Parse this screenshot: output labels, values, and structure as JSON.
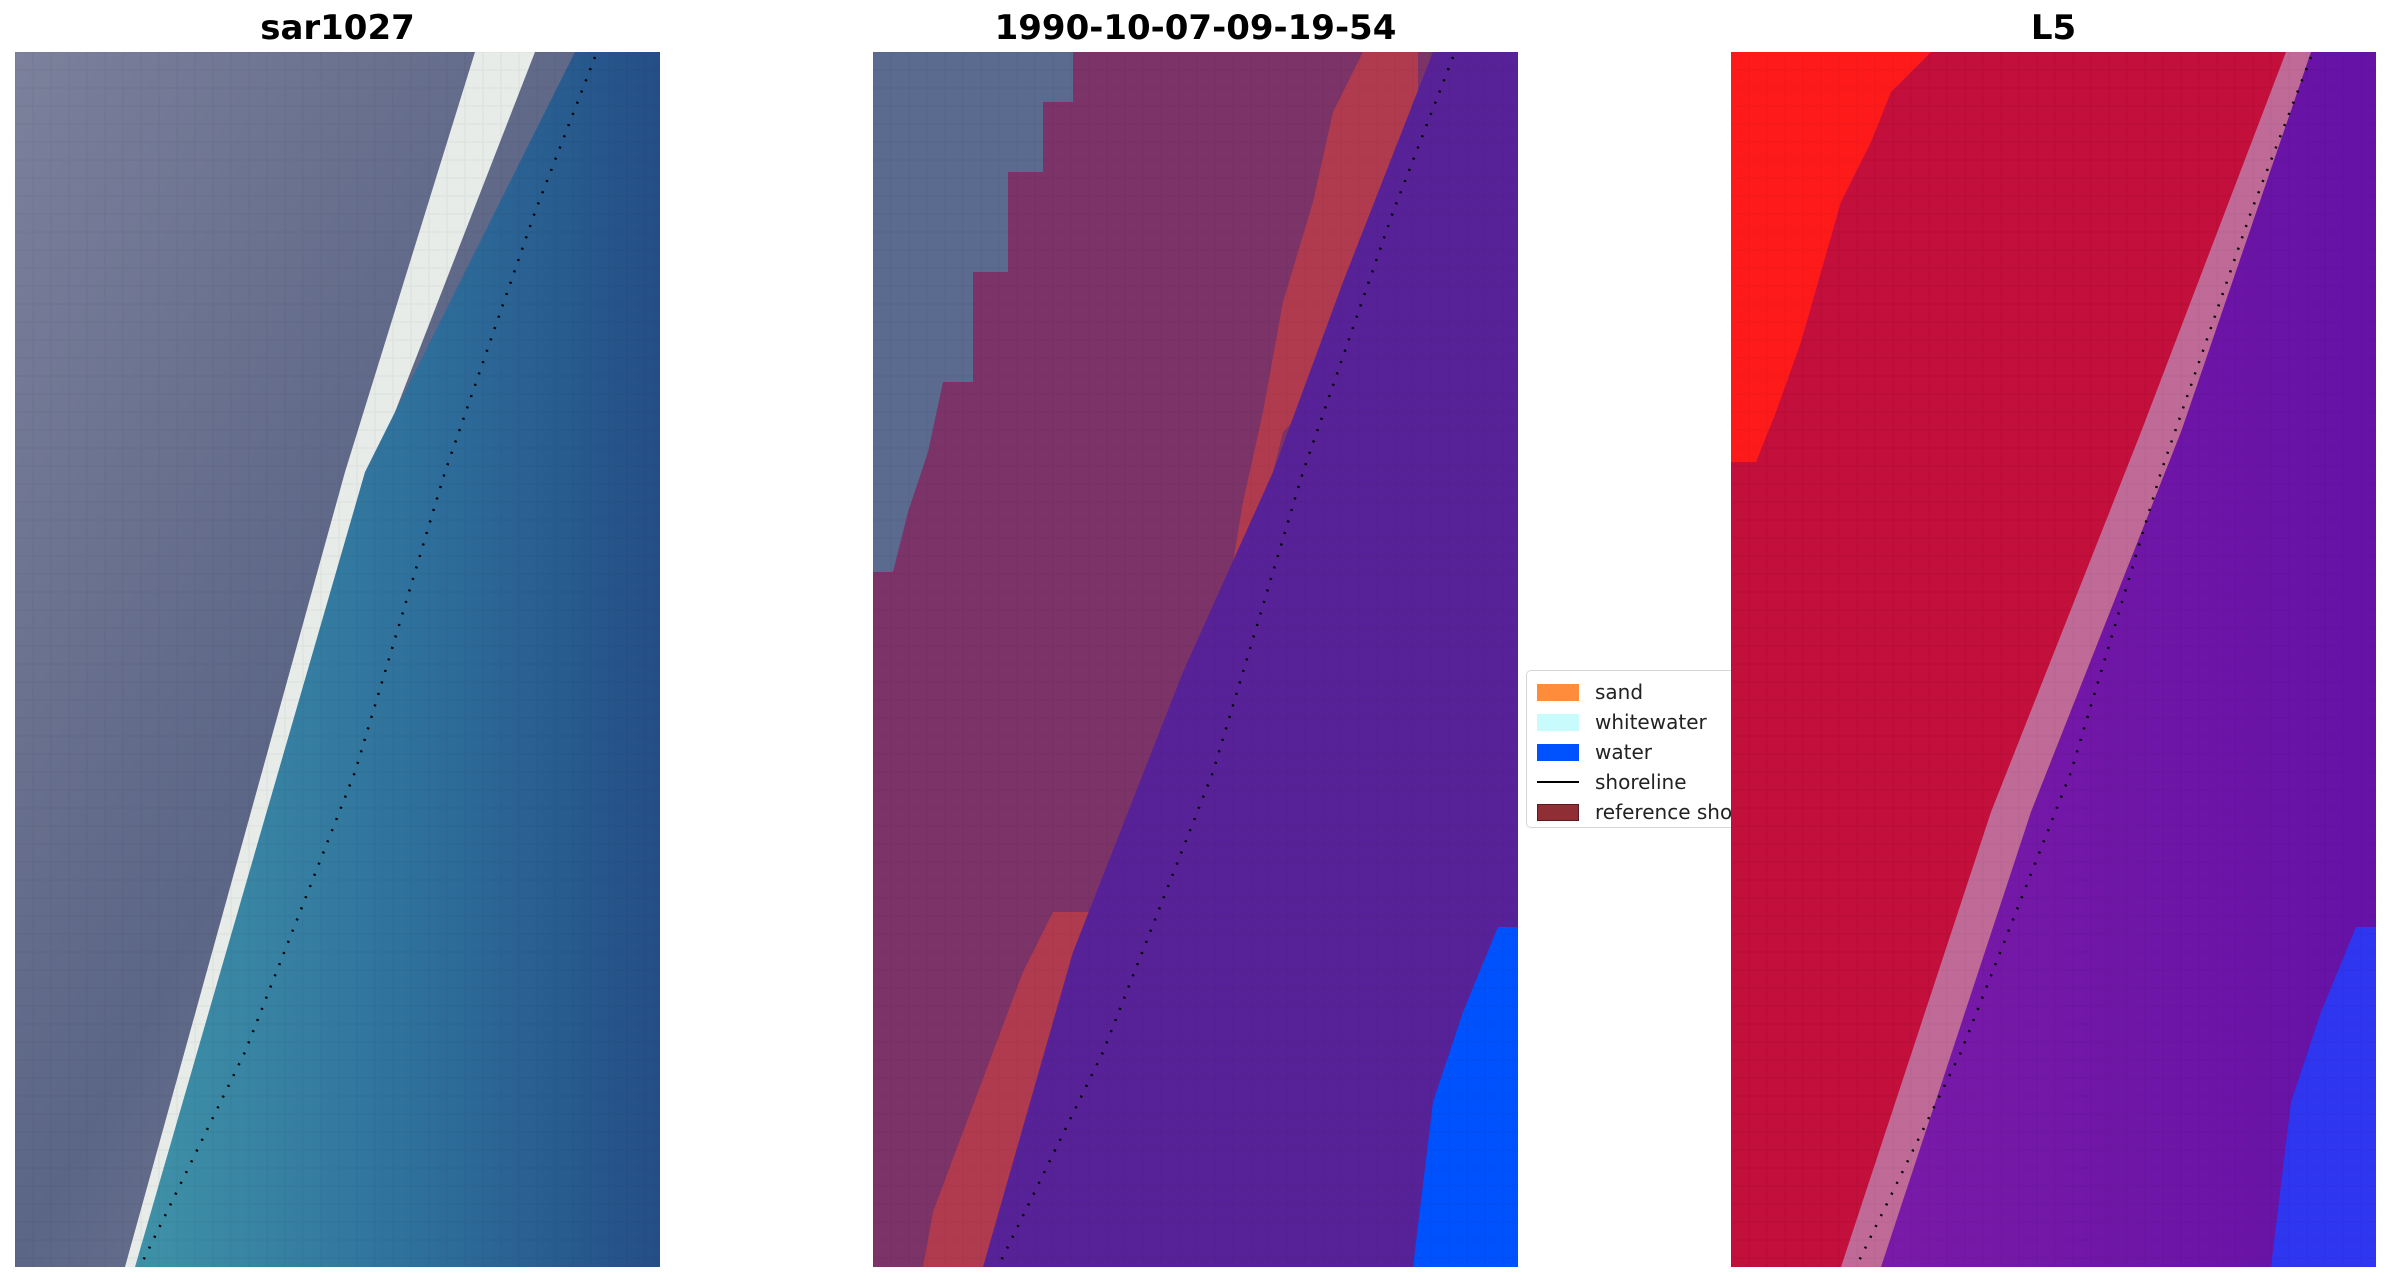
{
  "panels": [
    {
      "title": "sar1027",
      "kind": "rgb-image",
      "colors": {
        "land_dark": "#5b6585",
        "land_light": "#8a8ea6",
        "sand": "#e8ece8",
        "water_near": "#3f92a8",
        "water_far": "#244e86"
      }
    },
    {
      "title": "1990-10-07-09-19-54",
      "kind": "classified-image",
      "colors": {
        "land_rgb": "#5a6b8f",
        "land_class": "#7c3368",
        "sand_overlay": "#b13b4e",
        "water_class": "#572297",
        "water_blue": "#0052ff"
      }
    },
    {
      "title": "L5",
      "kind": "probability-image",
      "colors": {
        "land_bright": "#ff1a1a",
        "land": "#c20f3b",
        "transition": "#c06a98",
        "water": "#6e14a8",
        "water_blue": "#2f36f0"
      }
    }
  ],
  "legend": {
    "items": [
      {
        "label": "sand",
        "type": "patch",
        "color": "#ff8c3a"
      },
      {
        "label": "whitewater",
        "type": "patch",
        "color": "#c8fbfb"
      },
      {
        "label": "water",
        "type": "patch",
        "color": "#0052ff"
      },
      {
        "label": "shoreline",
        "type": "line",
        "color": "#000000"
      },
      {
        "label": "reference shoreline",
        "type": "patch",
        "color": "#8f2f35"
      }
    ]
  }
}
